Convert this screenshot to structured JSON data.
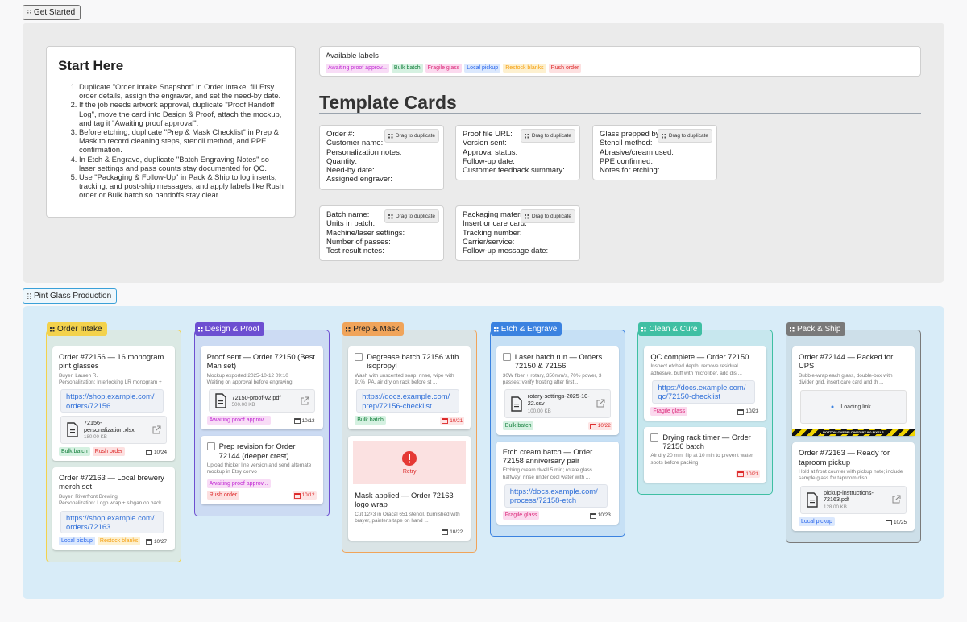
{
  "get_started": "Get Started",
  "start_here": {
    "title": "Start Here",
    "steps": [
      "Duplicate \"Order Intake Snapshot\" in Order Intake, fill Etsy order details, assign the engraver, and set the need-by date.",
      "If the job needs artwork approval, duplicate \"Proof Handoff Log\", move the card into Design & Proof, attach the mockup, and tag it \"Awaiting proof approval\".",
      "Before etching, duplicate \"Prep & Mask Checklist\" in Prep & Mask to record cleaning steps, stencil method, and PPE confirmation.",
      "In Etch & Engrave, duplicate \"Batch Engraving Notes\" so laser settings and pass counts stay documented for QC.",
      "Use \"Packaging & Follow-Up\" in Pack & Ship to log inserts, tracking, and post-ship messages, and apply labels like Rush order or Bulk batch so handoffs stay clear."
    ]
  },
  "labels": {
    "title": "Available labels",
    "items": [
      {
        "text": "Awaiting proof approv...",
        "color": "#c026d3",
        "bg": "#f8dcf6"
      },
      {
        "text": "Bulk batch",
        "color": "#15803d",
        "bg": "#d5f1e1"
      },
      {
        "text": "Fragile glass",
        "color": "#db2777",
        "bg": "#fbd9ee"
      },
      {
        "text": "Local pickup",
        "color": "#2563eb",
        "bg": "#dbe8fd"
      },
      {
        "text": "Restock blanks",
        "color": "#f59e0b",
        "bg": "#fdf0cf"
      },
      {
        "text": "Rush order",
        "color": "#dc2626",
        "bg": "#fde0e0"
      }
    ]
  },
  "templates": {
    "title": "Template Cards",
    "drag_label": "Drag to duplicate",
    "cards": [
      {
        "fields": [
          "Order #:",
          "Customer name:",
          "Personalization notes:",
          "Quantity:",
          "Need-by date:",
          "Assigned engraver:"
        ]
      },
      {
        "fields": [
          "Proof file URL:",
          "Version sent:",
          "Approval status:",
          "Follow-up date:",
          "Customer feedback summary:"
        ]
      },
      {
        "fields": [
          "Glass prepped by:",
          "Stencil method:",
          "Abrasive/cream used:",
          "PPE confirmed:",
          "Notes for etching:"
        ]
      },
      {
        "fields": [
          "Batch name:",
          "Units in batch:",
          "Machine/laser settings:",
          "Number of passes:",
          "Test result notes:"
        ]
      },
      {
        "fields": [
          "Packaging materials:",
          "Insert or care card:",
          "Tracking number:",
          "Carrier/service:",
          "Follow-up message date:"
        ]
      }
    ]
  },
  "board": {
    "title": "Pint Glass Production",
    "columns": [
      {
        "name": "Order Intake",
        "color": "#f3d24c",
        "cards": [
          {
            "title": "Order #72156 — 16 monogram pint glasses",
            "desc": [
              "Buyer: Lauren R.",
              "Personalization: Interlocking LR monogram +"
            ],
            "link": "https://shop.example.com/orders/72156",
            "file": {
              "name": "72156-personalization.xlsx",
              "size": "180.00 KB"
            },
            "tags": [
              "Bulk batch",
              "Rush order"
            ],
            "date": "10/24"
          },
          {
            "title": "Order #72163 — Local brewery merch set",
            "desc": [
              "Buyer: Riverfront Brewing",
              "Personalization: Logo wrap + slogan on back"
            ],
            "link": "https://shop.example.com/orders/72163",
            "tags": [
              "Local pickup",
              "Restock blanks"
            ],
            "date": "10/27"
          }
        ]
      },
      {
        "name": "Design & Proof",
        "color": "#6d4fd1",
        "cards": [
          {
            "title": "Proof sent — Order 72150 (Best Man set)",
            "desc": [
              "Mockup exported 2025-10-12 09:10",
              "Waiting on approval before engraving"
            ],
            "file": {
              "name": "72150-proof-v2.pdf",
              "size": "500.00 KB"
            },
            "tags": [
              "Awaiting proof approv..."
            ],
            "date": "10/13"
          },
          {
            "check": true,
            "title": "Prep revision for Order 72144 (deeper crest)",
            "desc": [
              "Upload thicker line version and send alternate mockup in Etsy convo"
            ],
            "tags": [
              "Awaiting proof approv...",
              "Rush order"
            ],
            "date": "10/12",
            "overdue": true
          }
        ]
      },
      {
        "name": "Prep & Mask",
        "color": "#f0a45a",
        "cards": [
          {
            "check": true,
            "title": "Degrease batch 72156 with isopropyl",
            "desc": [
              "Wash with unscented soap, rinse, wipe with 91% IPA, air dry on rack before st ..."
            ],
            "link": "https://docs.example.com/prep/72156-checklist",
            "tags": [
              "Bulk batch"
            ],
            "date": "10/21",
            "overdue": true
          },
          {
            "image_error": "Retry",
            "title": "Mask applied — Order 72163 logo wrap",
            "desc": [
              "Cut 12×3 in Oracal 651 stencil, burnished with brayer, painter's tape on hand ..."
            ],
            "date": "10/22"
          }
        ]
      },
      {
        "name": "Etch & Engrave",
        "color": "#3b82e0",
        "cards": [
          {
            "check": true,
            "title": "Laser batch run — Orders 72150 & 72156",
            "desc": [
              "30W fiber + rotary, 350mm/s, 70% power, 3 passes; verify frosting after first ..."
            ],
            "file": {
              "name": "rotary-settings-2025-10-22.csv",
              "size": "100.00 KB"
            },
            "tags": [
              "Bulk batch"
            ],
            "date": "10/22",
            "overdue": true
          },
          {
            "title": "Etch cream batch — Order 72158 anniversary pair",
            "desc": [
              "Etching cream dwell 5 min; rotate glass halfway; rinse under cool water with ..."
            ],
            "link": "https://docs.example.com/process/72158-etch",
            "tags": [
              "Fragile glass"
            ],
            "date": "10/23"
          }
        ]
      },
      {
        "name": "Clean & Cure",
        "color": "#3fbfa3",
        "cards": [
          {
            "title": "QC complete — Order 72150",
            "desc": [
              "Inspect etched depth, remove residual adhesive, buff with microfiber, add dis ..."
            ],
            "link": "https://docs.example.com/qc/72150-checklist",
            "tags": [
              "Fragile glass"
            ],
            "date": "10/23"
          },
          {
            "check": true,
            "title": "Drying rack timer — Order 72156 batch",
            "desc": [
              "Air dry 20 min; flip at 10 min to prevent water spots before packing"
            ],
            "date": "10/23",
            "overdue": true
          }
        ]
      },
      {
        "name": "Pack & Ship",
        "color": "#7a7a7a",
        "cards": [
          {
            "title": "Order #72144 — Packed for UPS",
            "desc": [
              "Bubble-wrap each glass, double-box with divider grid, insert care card and th ..."
            ],
            "loading": "Loading link...",
            "overflow": "BOTTOM OVERFLOWED BY 8.0 PIXELS"
          },
          {
            "title": "Order #72163 — Ready for taproom pickup",
            "desc": [
              "Hold at front counter with pickup note; include sample glass for taproom disp ..."
            ],
            "file": {
              "name": "pickup-instructions-72163.pdf",
              "size": "128.00 KB"
            },
            "tags": [
              "Local pickup"
            ],
            "date": "10/25"
          }
        ]
      }
    ]
  }
}
